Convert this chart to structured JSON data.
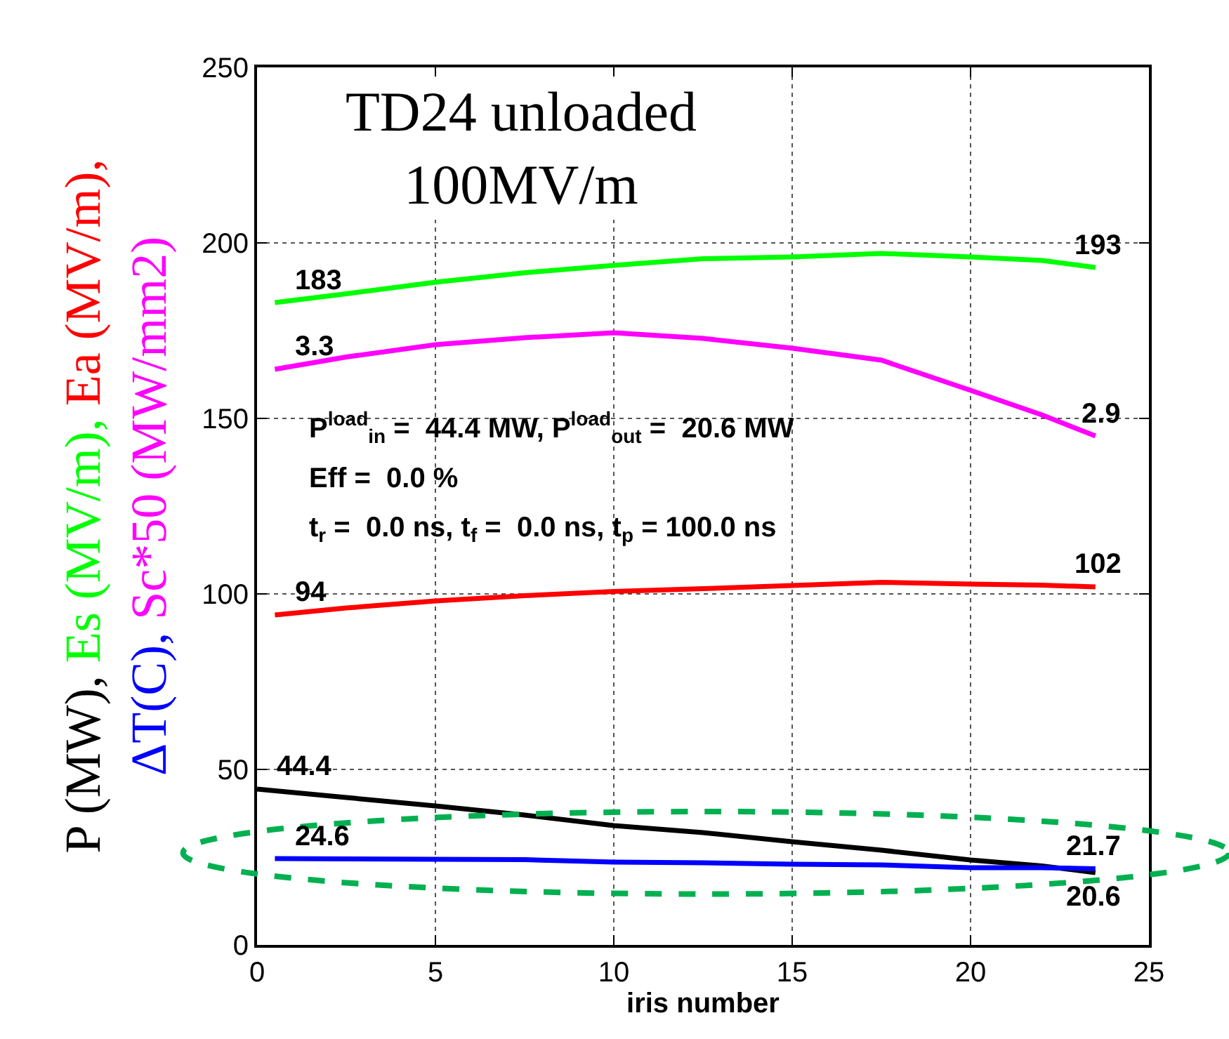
{
  "chart_data": {
    "type": "line",
    "title": "TD24 unloaded\n100MV/m",
    "xlabel": "iris number",
    "ylabel": "P (MW), Es (MV/m), Ea (MV/m),\nΔT(C), Sc*50 (MW/mm2)",
    "series": [
      {
        "color": "#000000",
        "x": [
          0,
          2.5,
          5,
          7.5,
          10,
          12.5,
          15,
          17.5,
          20,
          22,
          23.5
        ],
        "values": [
          44.4,
          42,
          39.6,
          37,
          34,
          32,
          29.4,
          27,
          24.2,
          22.5,
          20.6
        ]
      },
      {
        "color": "#00ff00",
        "x": [
          0.5,
          2.5,
          5,
          7.5,
          10,
          12.5,
          15,
          17.5,
          20,
          22,
          23.5
        ],
        "values": [
          183,
          185.5,
          188.8,
          191.5,
          193.6,
          195.5,
          196,
          197,
          196,
          195,
          193
        ]
      },
      {
        "color": "#ff0000",
        "x": [
          0.5,
          2.5,
          5,
          7.5,
          10,
          12.5,
          15,
          17.5,
          20,
          22,
          23.5
        ],
        "values": [
          94,
          96,
          98,
          99.5,
          100.7,
          101.5,
          102.4,
          103.3,
          102.8,
          102.5,
          102
        ]
      },
      {
        "color": "#0000ff",
        "x": [
          0.5,
          5,
          7.5,
          10,
          12.5,
          15,
          17.5,
          20,
          22,
          23.5
        ],
        "values": [
          24.6,
          24.4,
          24.3,
          23.6,
          23.4,
          23,
          22.8,
          22,
          22,
          21.7
        ]
      },
      {
        "color": "#ff00ff",
        "x": [
          0.5,
          2.5,
          5,
          7.5,
          10,
          12.5,
          15,
          17.5,
          20,
          22,
          23.5
        ],
        "values": [
          164,
          167.5,
          171,
          173,
          174.4,
          172.8,
          170,
          166.6,
          158,
          151,
          145
        ]
      }
    ],
    "annotations": [
      {
        "text": "44.4",
        "x": 0,
        "y": 44.4
      },
      {
        "text": "20.6",
        "x": 23.5,
        "y": 20.6
      },
      {
        "text": "183",
        "x": 0.5,
        "y": 183
      },
      {
        "text": "193",
        "x": 23.5,
        "y": 193
      },
      {
        "text": "94",
        "x": 0.5,
        "y": 94
      },
      {
        "text": "102",
        "x": 23.5,
        "y": 102
      },
      {
        "text": "24.6",
        "x": 0.5,
        "y": 24.6
      },
      {
        "text": "21.7",
        "x": 23.5,
        "y": 21.7
      },
      {
        "text": "3.3",
        "x": 0.5,
        "y": 164
      },
      {
        "text": "2.9",
        "x": 23.5,
        "y": 145
      },
      "P$^{load}$$_{in}$ =  44.4 MW, P$^{load}$$_{out}$ =  20.6 MW",
      "Eff =  0.0 %",
      "t$_{r}$ =  0.0 ns, t$_{f}$ =  0.0 ns, t$_{p}$ = 100.0 ns"
    ],
    "xlim": [
      0,
      25
    ],
    "xticks": [
      0,
      5,
      10,
      15,
      20,
      25
    ],
    "ylim": [
      0,
      250
    ],
    "yticks": [
      0,
      50,
      100,
      150,
      200,
      250
    ],
    "grid": true,
    "marker": "none",
    "line_style": "solid"
  }
}
